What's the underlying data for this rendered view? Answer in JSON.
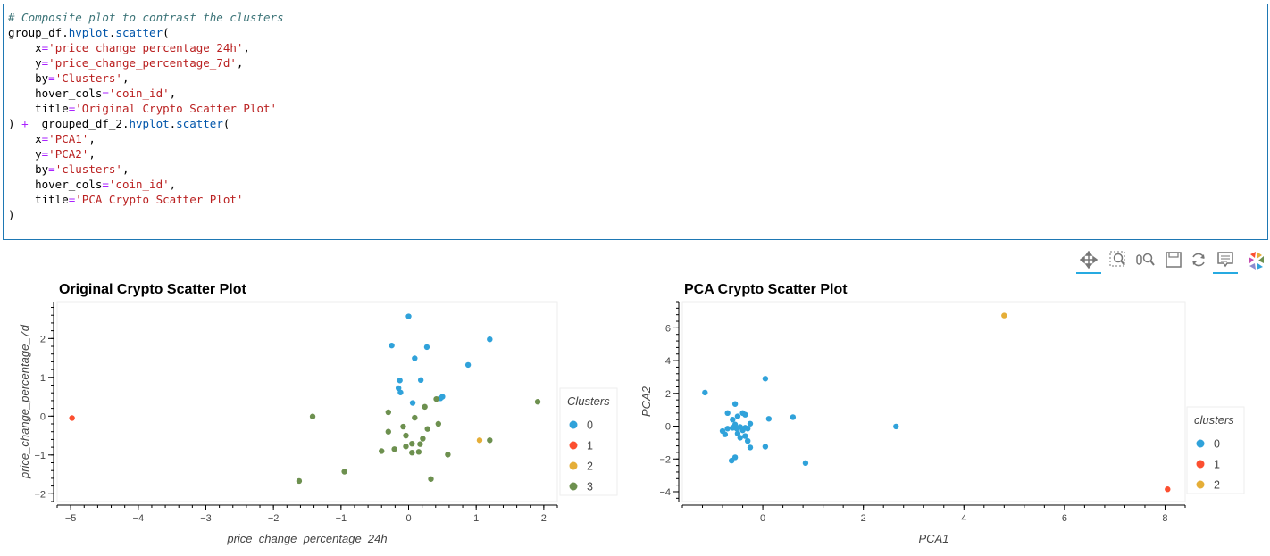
{
  "code_cell": {
    "lines": [
      [
        [
          "cm",
          "# Composite plot to contrast the clusters"
        ]
      ],
      [
        [
          "",
          "group_df."
        ],
        [
          "fn",
          "hvplot"
        ],
        [
          "",
          "."
        ],
        [
          "fn",
          "scatter"
        ],
        [
          "",
          "("
        ]
      ],
      [
        [
          "",
          "    x"
        ],
        [
          "op",
          "="
        ],
        [
          "st",
          "'price_change_percentage_24h'"
        ],
        [
          "",
          ","
        ]
      ],
      [
        [
          "",
          "    y"
        ],
        [
          "op",
          "="
        ],
        [
          "st",
          "'price_change_percentage_7d'"
        ],
        [
          "",
          ","
        ]
      ],
      [
        [
          "",
          "    by"
        ],
        [
          "op",
          "="
        ],
        [
          "st",
          "'Clusters'"
        ],
        [
          "",
          ","
        ]
      ],
      [
        [
          "",
          "    hover_cols"
        ],
        [
          "op",
          "="
        ],
        [
          "st",
          "'coin_id'"
        ],
        [
          "",
          ","
        ]
      ],
      [
        [
          "",
          "    title"
        ],
        [
          "op",
          "="
        ],
        [
          "st",
          "'Original Crypto Scatter Plot'"
        ]
      ],
      [
        [
          "",
          ") "
        ],
        [
          "op",
          "+"
        ],
        [
          "",
          "  grouped_df_2."
        ],
        [
          "fn",
          "hvplot"
        ],
        [
          "",
          "."
        ],
        [
          "fn",
          "scatter"
        ],
        [
          "",
          "("
        ]
      ],
      [
        [
          "",
          "    x"
        ],
        [
          "op",
          "="
        ],
        [
          "st",
          "'PCA1'"
        ],
        [
          "",
          ","
        ]
      ],
      [
        [
          "",
          "    y"
        ],
        [
          "op",
          "="
        ],
        [
          "st",
          "'PCA2'"
        ],
        [
          "",
          ","
        ]
      ],
      [
        [
          "",
          "    by"
        ],
        [
          "op",
          "="
        ],
        [
          "st",
          "'clusters'"
        ],
        [
          "",
          ","
        ]
      ],
      [
        [
          "",
          "    hover_cols"
        ],
        [
          "op",
          "="
        ],
        [
          "st",
          "'coin_id'"
        ],
        [
          "",
          ","
        ]
      ],
      [
        [
          "",
          "    title"
        ],
        [
          "op",
          "="
        ],
        [
          "st",
          "'PCA Crypto Scatter Plot'"
        ]
      ],
      [
        [
          "",
          ")"
        ]
      ]
    ]
  },
  "toolbar": {
    "tools": [
      {
        "name": "pan-tool",
        "icon": "pan-icon",
        "active": true
      },
      {
        "name": "box-zoom-tool",
        "icon": "box-zoom-icon",
        "active": false
      },
      {
        "name": "wheel-zoom-tool",
        "icon": "wheel-zoom-icon",
        "active": false
      },
      {
        "name": "save-tool",
        "icon": "save-icon",
        "active": false
      },
      {
        "name": "reset-tool",
        "icon": "reset-icon",
        "active": false
      },
      {
        "name": "hover-tool",
        "icon": "hover-icon",
        "active": true
      },
      {
        "name": "bokeh-logo",
        "icon": "bokeh-logo-icon",
        "active": false
      }
    ]
  },
  "colors": {
    "cluster_0": "#30a2da",
    "cluster_1": "#fc4f30",
    "cluster_2": "#e5ae38",
    "cluster_3": "#6d904f"
  },
  "chart_data": [
    {
      "type": "scatter",
      "title": "Original Crypto Scatter Plot",
      "xlabel": "price_change_percentage_24h",
      "ylabel": "price_change_percentage_7d",
      "xlim": [
        -5.2,
        2.2
      ],
      "ylim": [
        -2.2,
        2.95
      ],
      "xticks": [
        -5,
        -4,
        -3,
        -2,
        -1,
        0,
        1,
        2
      ],
      "yticks": [
        -2,
        -1,
        0,
        1,
        2
      ],
      "grid": false,
      "legend_title": "Clusters",
      "legend_position": "right",
      "series": [
        {
          "name": "0",
          "color": "#30a2da",
          "points": [
            [
              0.0,
              2.57
            ],
            [
              -0.25,
              1.82
            ],
            [
              0.27,
              1.78
            ],
            [
              1.2,
              1.98
            ],
            [
              0.09,
              1.49
            ],
            [
              0.88,
              1.32
            ],
            [
              -0.13,
              0.92
            ],
            [
              0.18,
              0.93
            ],
            [
              -0.15,
              0.72
            ],
            [
              -0.12,
              0.61
            ],
            [
              0.5,
              0.5
            ],
            [
              0.47,
              0.46
            ],
            [
              0.06,
              0.34
            ]
          ]
        },
        {
          "name": "1",
          "color": "#fc4f30",
          "points": [
            [
              -4.98,
              -0.05
            ]
          ]
        },
        {
          "name": "2",
          "color": "#e5ae38",
          "points": [
            [
              1.05,
              -0.62
            ]
          ]
        },
        {
          "name": "3",
          "color": "#6d904f",
          "points": [
            [
              1.91,
              0.37
            ],
            [
              -1.42,
              -0.01
            ],
            [
              -0.3,
              0.1
            ],
            [
              0.24,
              0.24
            ],
            [
              0.41,
              0.44
            ],
            [
              0.09,
              -0.04
            ],
            [
              0.44,
              -0.2
            ],
            [
              -0.08,
              -0.27
            ],
            [
              -0.3,
              -0.4
            ],
            [
              0.28,
              -0.33
            ],
            [
              -0.04,
              -0.5
            ],
            [
              1.2,
              -0.62
            ],
            [
              -0.04,
              -0.78
            ],
            [
              0.05,
              -0.71
            ],
            [
              0.17,
              -0.72
            ],
            [
              -0.21,
              -0.85
            ],
            [
              -0.4,
              -0.9
            ],
            [
              0.05,
              -0.94
            ],
            [
              0.15,
              -0.92
            ],
            [
              0.58,
              -0.99
            ],
            [
              0.21,
              -0.58
            ],
            [
              -0.95,
              -1.43
            ],
            [
              -1.62,
              -1.67
            ],
            [
              0.33,
              -1.62
            ]
          ]
        }
      ]
    },
    {
      "type": "scatter",
      "title": "PCA Crypto Scatter Plot",
      "xlabel": "PCA1",
      "ylabel": "PCA2",
      "xlim": [
        -1.6,
        8.4
      ],
      "ylim": [
        -4.6,
        7.6
      ],
      "xticks": [
        0,
        2,
        4,
        6,
        8
      ],
      "yticks": [
        -4,
        -2,
        0,
        2,
        4,
        6
      ],
      "grid": false,
      "legend_title": "clusters",
      "legend_position": "right",
      "series": [
        {
          "name": "0",
          "color": "#30a2da",
          "points": [
            [
              -1.15,
              2.05
            ],
            [
              0.05,
              2.9
            ],
            [
              -0.55,
              1.35
            ],
            [
              -0.7,
              0.8
            ],
            [
              -0.4,
              0.8
            ],
            [
              -0.35,
              0.7
            ],
            [
              -0.5,
              0.6
            ],
            [
              -0.6,
              0.4
            ],
            [
              0.12,
              0.45
            ],
            [
              0.6,
              0.55
            ],
            [
              2.65,
              -0.02
            ],
            [
              -0.8,
              -0.3
            ],
            [
              -0.75,
              -0.5
            ],
            [
              -0.7,
              -0.15
            ],
            [
              -0.6,
              -0.1
            ],
            [
              -0.55,
              0.1
            ],
            [
              -0.45,
              -0.05
            ],
            [
              -0.4,
              -0.25
            ],
            [
              -0.35,
              -0.1
            ],
            [
              -0.3,
              -0.15
            ],
            [
              -0.5,
              -0.45
            ],
            [
              -0.45,
              -0.7
            ],
            [
              -0.35,
              -0.6
            ],
            [
              -0.3,
              -0.9
            ],
            [
              -0.25,
              -1.3
            ],
            [
              0.05,
              -1.25
            ],
            [
              -0.55,
              -1.9
            ],
            [
              -0.62,
              -2.1
            ],
            [
              -0.25,
              0.15
            ],
            [
              0.85,
              -2.25
            ],
            [
              -0.52,
              -0.15
            ]
          ]
        },
        {
          "name": "1",
          "color": "#fc4f30",
          "points": [
            [
              8.05,
              -3.85
            ]
          ]
        },
        {
          "name": "2",
          "color": "#e5ae38",
          "points": [
            [
              4.8,
              6.75
            ]
          ]
        }
      ]
    }
  ]
}
